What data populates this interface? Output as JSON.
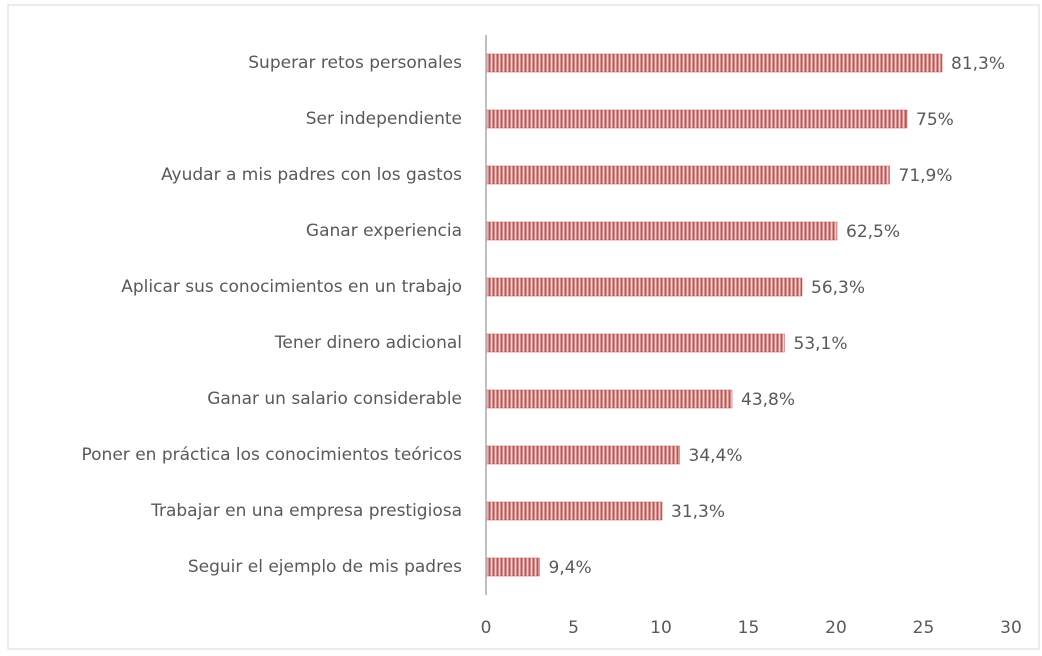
{
  "chart_data": {
    "type": "barh",
    "categories": [
      "Superar retos personales",
      "Ser independiente",
      "Ayudar a mis padres con los gastos",
      "Ganar experiencia",
      "Aplicar sus conocimientos en un trabajo",
      "Tener dinero adicional",
      "Ganar un salario considerable",
      "Poner en práctica los conocimientos teóricos",
      "Trabajar en una empresa prestigiosa",
      "Seguir el ejemplo de mis padres"
    ],
    "values": [
      26,
      24,
      23,
      20,
      18,
      17,
      14,
      11,
      10,
      3
    ],
    "value_labels": [
      "81,3%",
      "75%",
      "71,9%",
      "62,5%",
      "56,3%",
      "53,1%",
      "43,8%",
      "34,4%",
      "31,3%",
      "9,4%"
    ],
    "color": "#c0504d",
    "xlim": [
      0,
      30
    ],
    "xticks": [
      0,
      5,
      10,
      15,
      20,
      25,
      30
    ]
  }
}
